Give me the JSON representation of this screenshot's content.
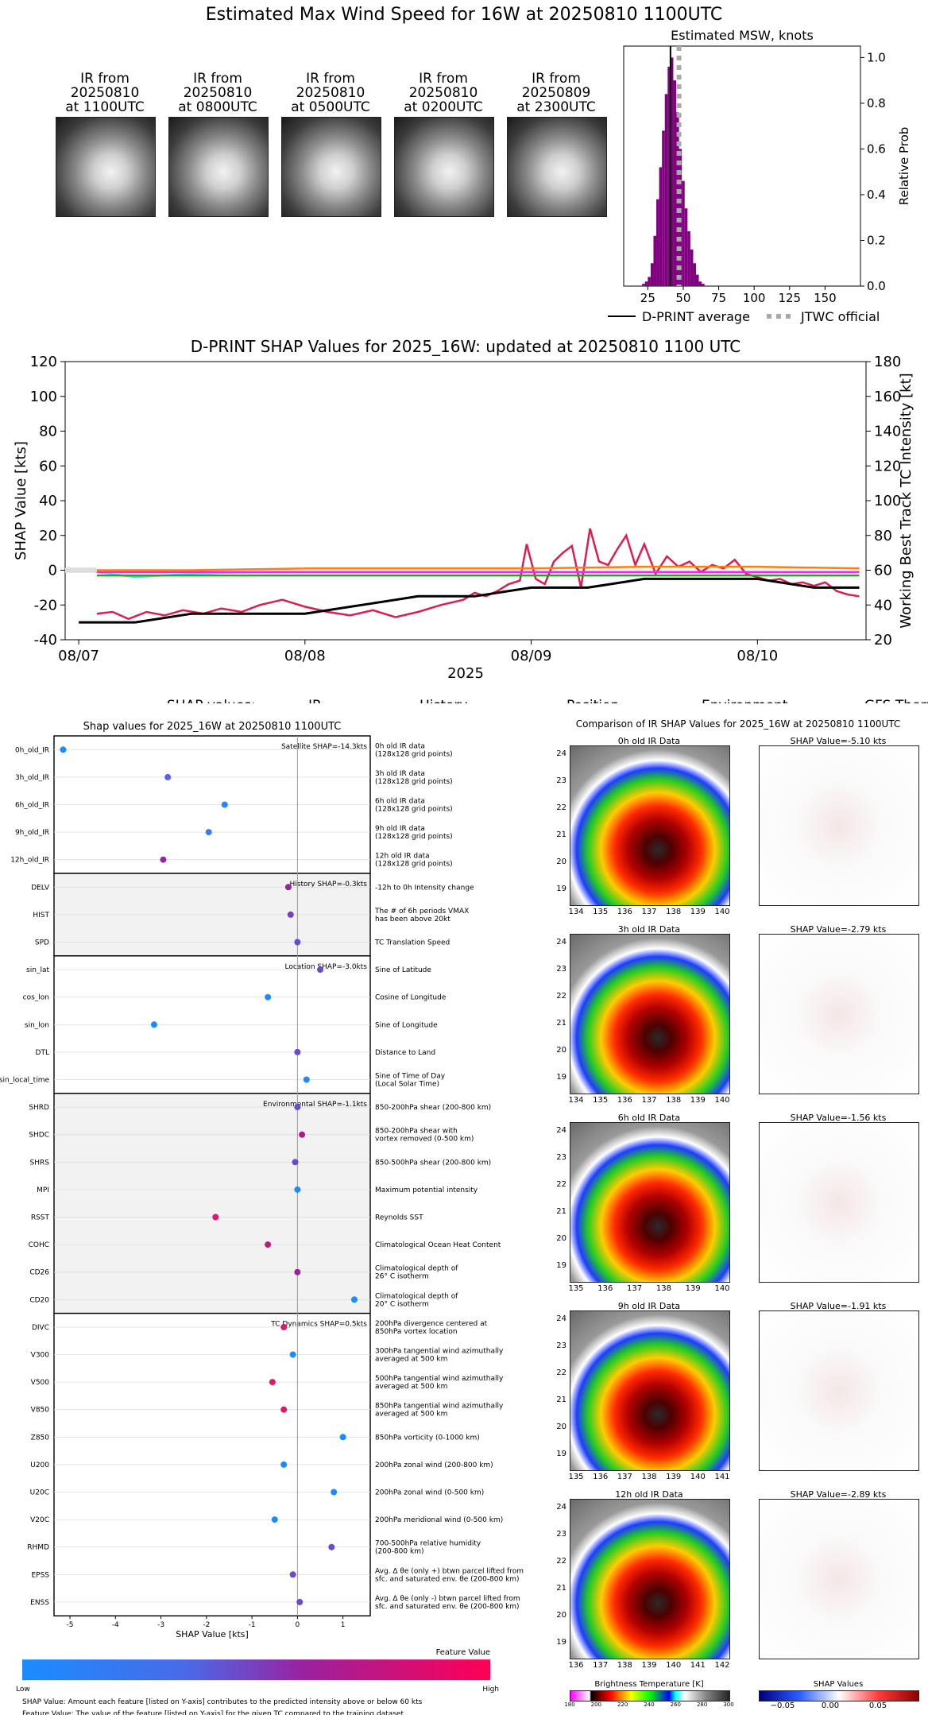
{
  "page_title": "Estimated Max Wind Speed for 16W at 20250810 1100UTC",
  "ir_thumbnails": [
    {
      "line1": "IR from",
      "line2": "20250810",
      "line3": "at 1100UTC"
    },
    {
      "line1": "IR from",
      "line2": "20250810",
      "line3": "at 0800UTC"
    },
    {
      "line1": "IR from",
      "line2": "20250810",
      "line3": "at 0500UTC"
    },
    {
      "line1": "IR from",
      "line2": "20250810",
      "line3": "at 0200UTC"
    },
    {
      "line1": "IR from",
      "line2": "20250809",
      "line3": "at 2300UTC"
    }
  ],
  "chart_data": [
    {
      "type": "bar",
      "title": "Estimated MSW, knots",
      "ylabel": "Relative Prob",
      "xlim": [
        8,
        175
      ],
      "ylim": [
        0,
        1.05
      ],
      "xticks": [
        25,
        50,
        75,
        100,
        125,
        150
      ],
      "yticks": [
        0.0,
        0.2,
        0.4,
        0.6,
        0.8,
        1.0
      ],
      "bins": [
        22,
        24,
        26,
        28,
        30,
        32,
        34,
        36,
        38,
        40,
        42,
        44,
        46,
        48,
        50,
        52,
        54,
        56,
        58,
        60,
        62,
        64
      ],
      "values": [
        0.01,
        0.02,
        0.04,
        0.1,
        0.22,
        0.38,
        0.52,
        0.68,
        0.84,
        0.96,
        1.0,
        0.9,
        0.76,
        0.6,
        0.46,
        0.34,
        0.24,
        0.16,
        0.1,
        0.05,
        0.02,
        0.01
      ],
      "dprint_average": 41,
      "jtwc_official": 47,
      "legend": [
        "D-PRINT average",
        "JTWC official"
      ]
    },
    {
      "type": "line",
      "title": "D-PRINT SHAP Values for 2025_16W: updated at 20250810 1100 UTC",
      "xlabel": "2025",
      "ylabel": "SHAP Value [kts]",
      "y2label": "Working Best Track TC Intensity [kt]",
      "ylim": [
        -40,
        120
      ],
      "y2lim": [
        20,
        180
      ],
      "yticks": [
        -40,
        -20,
        0,
        20,
        40,
        60,
        80,
        100,
        120
      ],
      "y2ticks": [
        20,
        40,
        60,
        80,
        100,
        120,
        140,
        160,
        180
      ],
      "xlim": [
        -0.06,
        3.48
      ],
      "xticks": [
        0,
        1,
        2,
        3
      ],
      "xticklabels": [
        "08/07",
        "08/08",
        "08/09",
        "08/10"
      ],
      "legend_title": "SHAP values:",
      "series": [
        {
          "name": "IR",
          "color": "#dc1e50",
          "x": [
            0.08,
            0.15,
            0.22,
            0.3,
            0.38,
            0.46,
            0.55,
            0.63,
            0.72,
            0.8,
            0.9,
            1.0,
            1.1,
            1.2,
            1.3,
            1.4,
            1.5,
            1.6,
            1.7,
            1.75,
            1.8,
            1.85,
            1.9,
            1.95,
            1.98,
            2.02,
            2.06,
            2.1,
            2.14,
            2.18,
            2.22,
            2.26,
            2.3,
            2.34,
            2.38,
            2.42,
            2.46,
            2.5,
            2.55,
            2.6,
            2.65,
            2.7,
            2.75,
            2.8,
            2.85,
            2.9,
            2.95,
            3.0,
            3.05,
            3.1,
            3.15,
            3.2,
            3.25,
            3.3,
            3.35,
            3.4,
            3.45
          ],
          "y": [
            -25,
            -24,
            -28,
            -24,
            -26,
            -23,
            -25,
            -22,
            -24,
            -20,
            -17,
            -21,
            -24,
            -26,
            -23,
            -27,
            -24,
            -20,
            -17,
            -13,
            -15,
            -12,
            -8,
            -6,
            15,
            -5,
            -8,
            5,
            10,
            14,
            -10,
            24,
            5,
            3,
            12,
            20,
            3,
            15,
            -2,
            8,
            2,
            5,
            -1,
            3,
            1,
            6,
            -2,
            -4,
            -6,
            -5,
            -8,
            -7,
            -9,
            -7,
            -12,
            -14,
            -15
          ]
        },
        {
          "name": "History",
          "color": "#3ee6e6",
          "x": [
            0.08,
            0.25,
            0.5,
            0.8,
            1.2,
            1.6,
            2.0,
            2.4,
            2.8,
            3.2,
            3.45
          ],
          "y": [
            -1,
            -4,
            -2,
            -1,
            -1,
            -1,
            -1,
            -1,
            -1,
            -1,
            -1
          ]
        },
        {
          "name": "Position",
          "color": "#2ca02c",
          "x": [
            0.08,
            0.5,
            1.0,
            1.5,
            2.0,
            2.5,
            3.0,
            3.45
          ],
          "y": [
            -3,
            -3,
            -3,
            -3,
            -3,
            -3,
            -3,
            -3
          ]
        },
        {
          "name": "Environment",
          "color": "#e62ee6",
          "x": [
            0.08,
            0.5,
            1.0,
            1.5,
            2.0,
            2.5,
            3.0,
            3.45
          ],
          "y": [
            -1,
            -1,
            -1,
            -1,
            -1,
            -1,
            -1,
            -1
          ]
        },
        {
          "name": "GFS Thermo",
          "color": "#ff7f0e",
          "x": [
            0.08,
            0.5,
            1.0,
            1.5,
            2.0,
            2.5,
            3.0,
            3.45
          ],
          "y": [
            0,
            0,
            1,
            1,
            1,
            2,
            2,
            1
          ]
        },
        {
          "name": "TC Intensity",
          "color": "#000000",
          "axis": "right",
          "x": [
            0.0,
            0.25,
            0.5,
            0.75,
            1.0,
            1.25,
            1.5,
            1.75,
            2.0,
            2.25,
            2.5,
            2.75,
            3.0,
            3.25,
            3.45
          ],
          "y": [
            30,
            30,
            35,
            35,
            35,
            40,
            45,
            45,
            50,
            50,
            55,
            55,
            55,
            50,
            50
          ]
        }
      ]
    },
    {
      "type": "scatter",
      "title": "Shap values for 2025_16W at 20250810 1100UTC",
      "xlabel": "SHAP Value [kts]",
      "xlim": [
        -5.35,
        1.6
      ],
      "xticks": [
        -5,
        -4,
        -3,
        -2,
        -1,
        0,
        1
      ],
      "groups": [
        {
          "label": "Satellite SHAP=-14.3kts",
          "start": 0,
          "end": 5,
          "shaded": false
        },
        {
          "label": "History SHAP=-0.3kts",
          "start": 5,
          "end": 8,
          "shaded": true
        },
        {
          "label": "Location SHAP=-3.0kts",
          "start": 8,
          "end": 13,
          "shaded": false
        },
        {
          "label": "Environmental SHAP=-1.1kts",
          "start": 13,
          "end": 21,
          "shaded": true
        },
        {
          "label": "TC Dynamics SHAP=0.5kts",
          "start": 21,
          "end": 32,
          "shaded": false
        }
      ],
      "features": [
        {
          "name": "0h_old_IR",
          "desc": [
            "0h old IR data",
            "(128x128 grid points)"
          ],
          "value": -5.15,
          "color": "#1a8cff"
        },
        {
          "name": "3h_old_IR",
          "desc": [
            "3h old IR data",
            "(128x128 grid points)"
          ],
          "value": -2.85,
          "color": "#5b62e0"
        },
        {
          "name": "6h_old_IR",
          "desc": [
            "6h old IR data",
            "(128x128 grid points)"
          ],
          "value": -1.6,
          "color": "#1a8cff"
        },
        {
          "name": "9h_old_IR",
          "desc": [
            "9h old IR data",
            "(128x128 grid points)"
          ],
          "value": -1.95,
          "color": "#3c7cf0"
        },
        {
          "name": "12h_old_IR",
          "desc": [
            "12h old IR data",
            "(128x128 grid points)"
          ],
          "value": -2.95,
          "color": "#8a2aa8"
        },
        {
          "name": "DELV",
          "desc": [
            "-12h to 0h Intensity change"
          ],
          "value": -0.2,
          "color": "#9a22a0"
        },
        {
          "name": "HIST",
          "desc": [
            "The # of 6h periods VMAX",
            "has been above 20kt"
          ],
          "value": -0.15,
          "color": "#7a3cc0"
        },
        {
          "name": "SPD",
          "desc": [
            "TC Translation Speed"
          ],
          "value": 0.0,
          "color": "#6a4ad0"
        },
        {
          "name": "sin_lat",
          "desc": [
            "Sine of Latitude"
          ],
          "value": 0.5,
          "color": "#6a4ad0"
        },
        {
          "name": "cos_lon",
          "desc": [
            "Cosine of Longitude"
          ],
          "value": -0.65,
          "color": "#1a8cff"
        },
        {
          "name": "sin_lon",
          "desc": [
            "Sine of Longitude"
          ],
          "value": -3.15,
          "color": "#1a8cff"
        },
        {
          "name": "DTL",
          "desc": [
            "Distance to Land"
          ],
          "value": 0.0,
          "color": "#6a4ad0"
        },
        {
          "name": "sin_local_time",
          "desc": [
            "Sine of Time of Day",
            "(Local Solar Time)"
          ],
          "value": 0.2,
          "color": "#1a8cff"
        },
        {
          "name": "SHRD",
          "desc": [
            "850-200hPa shear (200-800 km)"
          ],
          "value": 0.0,
          "color": "#6a4ad0"
        },
        {
          "name": "SHDC",
          "desc": [
            "850-200hPa shear with",
            "vortex removed (0-500 km)"
          ],
          "value": 0.1,
          "color": "#b01a8c"
        },
        {
          "name": "SHRS",
          "desc": [
            "850-500hPa shear (200-800 km)"
          ],
          "value": -0.05,
          "color": "#6a4ad0"
        },
        {
          "name": "MPI",
          "desc": [
            "Maximum potential intensity"
          ],
          "value": 0.0,
          "color": "#1a8cff"
        },
        {
          "name": "RSST",
          "desc": [
            "Reynolds SST"
          ],
          "value": -1.8,
          "color": "#e0186a"
        },
        {
          "name": "COHC",
          "desc": [
            "Climatological Ocean Heat Content"
          ],
          "value": -0.65,
          "color": "#c01a80"
        },
        {
          "name": "CD26",
          "desc": [
            "Climatological depth of",
            "26° C isotherm"
          ],
          "value": 0.0,
          "color": "#9a22a0"
        },
        {
          "name": "CD20",
          "desc": [
            "Climatological depth of",
            "20° C isotherm"
          ],
          "value": 1.25,
          "color": "#1a8cff"
        },
        {
          "name": "DIVC",
          "desc": [
            "200hPa divergence centered at",
            "850hPa vortex location"
          ],
          "value": -0.3,
          "color": "#e0186a"
        },
        {
          "name": "V300",
          "desc": [
            "300hPa tangential wind azimuthally",
            "averaged at 500 km"
          ],
          "value": -0.1,
          "color": "#1a8cff"
        },
        {
          "name": "V500",
          "desc": [
            "500hPa tangential wind azimuthally",
            "averaged at 500 km"
          ],
          "value": -0.55,
          "color": "#e0186a"
        },
        {
          "name": "V850",
          "desc": [
            "850hPa tangential wind azimuthally",
            "averaged at 500 km"
          ],
          "value": -0.3,
          "color": "#e0186a"
        },
        {
          "name": "Z850",
          "desc": [
            "850hPa vorticity (0-1000 km)"
          ],
          "value": 1.0,
          "color": "#1a8cff"
        },
        {
          "name": "U200",
          "desc": [
            "200hPa zonal wind (200-800 km)"
          ],
          "value": -0.3,
          "color": "#1a8cff"
        },
        {
          "name": "U20C",
          "desc": [
            "200hPa zonal wind (0-500 km)"
          ],
          "value": 0.8,
          "color": "#1a8cff"
        },
        {
          "name": "V20C",
          "desc": [
            "200hPa meridional wind (0-500 km)"
          ],
          "value": -0.5,
          "color": "#1a8cff"
        },
        {
          "name": "RHMD",
          "desc": [
            "700-500hPa relative humidity",
            "(200-800 km)"
          ],
          "value": 0.75,
          "color": "#6a4ad0"
        },
        {
          "name": "EPSS",
          "desc": [
            "Avg. Δ θe (only +) btwn parcel lifted from",
            "sfc. and saturated env. θe (200-800 km)"
          ],
          "value": -0.1,
          "color": "#6a4ad0"
        },
        {
          "name": "ENSS",
          "desc": [
            "Avg. Δ θe (only -) btwn parcel lifted from",
            "sfc. and saturated env. θe (200-800 km)"
          ],
          "value": 0.05,
          "color": "#6a4ad0"
        }
      ],
      "colorbar_title": "Feature Value",
      "colorbar_low": "Low",
      "colorbar_high": "High"
    }
  ],
  "footnotes": [
    "SHAP Value: Amount each feature [listed on Y-axis] contributes to the predicted intensity above or below 60 kts",
    "Feature Value: The value of the feature [listed on Y-axis] for the given TC compared to the training dataset"
  ],
  "comparison": {
    "title": "Comparison of IR SHAP Values for 2025_16W at 20250810 1100UTC",
    "rows": [
      {
        "ir_title": "0h old IR Data",
        "shap_title": "SHAP Value=-5.10 kts",
        "xticks": [
          "134",
          "135",
          "136",
          "137",
          "138",
          "139",
          "140"
        ],
        "yticks": [
          "24",
          "23",
          "22",
          "21",
          "20",
          "19"
        ]
      },
      {
        "ir_title": "3h old IR Data",
        "shap_title": "SHAP Value=-2.79 kts",
        "xticks": [
          "134",
          "135",
          "136",
          "137",
          "138",
          "139",
          "140"
        ],
        "yticks": [
          "24",
          "23",
          "22",
          "21",
          "20",
          "19"
        ]
      },
      {
        "ir_title": "6h old IR Data",
        "shap_title": "SHAP Value=-1.56 kts",
        "xticks": [
          "135",
          "136",
          "137",
          "138",
          "139",
          "140"
        ],
        "yticks": [
          "24",
          "23",
          "22",
          "21",
          "20",
          "19"
        ]
      },
      {
        "ir_title": "9h old IR Data",
        "shap_title": "SHAP Value=-1.91 kts",
        "xticks": [
          "135",
          "136",
          "137",
          "138",
          "139",
          "140",
          "141"
        ],
        "yticks": [
          "24",
          "23",
          "22",
          "21",
          "20",
          "19"
        ]
      },
      {
        "ir_title": "12h old IR Data",
        "shap_title": "SHAP Value=-2.89 kts",
        "xticks": [
          "136",
          "137",
          "138",
          "139",
          "140",
          "141",
          "142"
        ],
        "yticks": [
          "24",
          "23",
          "22",
          "21",
          "20",
          "19"
        ]
      }
    ],
    "bt_title": "Brightness Temperature [K]",
    "bt_ticks": [
      "180",
      "200",
      "220",
      "240",
      "260",
      "280",
      "300"
    ],
    "shap_cb_title": "SHAP Values",
    "shap_cb_ticks": [
      "−0.05",
      "0.00",
      "0.05"
    ]
  }
}
